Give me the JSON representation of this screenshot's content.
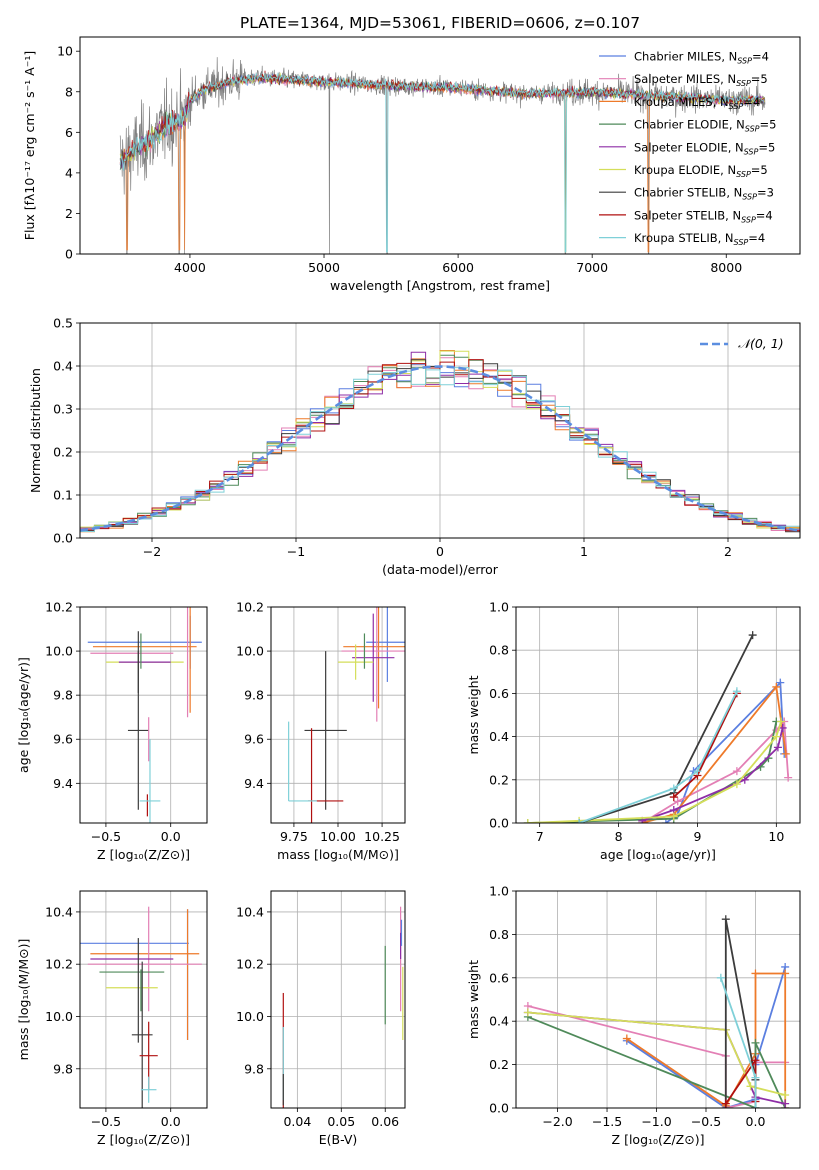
{
  "figure_title": "PLATE=1364, MJD=53061, FIBERID=0606, z=0.107",
  "models": [
    {
      "name": "Chabrier MILES",
      "nssp": "4",
      "color": "#5b7fe0"
    },
    {
      "name": "Salpeter MILES",
      "nssp": "5",
      "color": "#e37fb5"
    },
    {
      "name": "Kroupa MILES",
      "nssp": "4",
      "color": "#ee7a2a"
    },
    {
      "name": "Chabrier ELODIE",
      "nssp": "5",
      "color": "#4f8a5a"
    },
    {
      "name": "Salpeter ELODIE",
      "nssp": "5",
      "color": "#8e2da6"
    },
    {
      "name": "Kroupa ELODIE",
      "nssp": "5",
      "color": "#d4de5a"
    },
    {
      "name": "Chabrier STELIB",
      "nssp": "3",
      "color": "#3c3c3c"
    },
    {
      "name": "Salpeter STELIB",
      "nssp": "4",
      "color": "#b01010"
    },
    {
      "name": "Kroupa STELIB",
      "nssp": "4",
      "color": "#7fd0d8"
    }
  ],
  "chart_data": [
    {
      "id": "spectrum",
      "type": "line",
      "xlabel": "wavelength [Angstrom, rest frame]",
      "ylabel": "Flux [fλ10⁻¹⁷ erg cm⁻² s⁻¹ A⁻¹]",
      "xlim": [
        3180,
        8550
      ],
      "ylim": [
        0,
        10.7
      ],
      "xticks": [
        4000,
        5000,
        6000,
        7000,
        8000
      ],
      "yticks": [
        0,
        2,
        4,
        6,
        8,
        10
      ],
      "data_range": [
        3480,
        8290
      ],
      "continuum": [
        [
          3480,
          4.6
        ],
        [
          3600,
          5.2
        ],
        [
          3700,
          5.6
        ],
        [
          3850,
          6.5
        ],
        [
          3950,
          6.6
        ],
        [
          4000,
          7.6
        ],
        [
          4100,
          8.1
        ],
        [
          4300,
          8.5
        ],
        [
          4500,
          8.7
        ],
        [
          5000,
          8.5
        ],
        [
          5500,
          8.3
        ],
        [
          6000,
          8.2
        ],
        [
          6500,
          7.9
        ],
        [
          7000,
          8.0
        ],
        [
          7500,
          7.8
        ],
        [
          8000,
          7.6
        ],
        [
          8290,
          7.6
        ]
      ],
      "dips": [
        [
          3530,
          0
        ],
        [
          3920,
          0
        ],
        [
          3960,
          0
        ],
        [
          5040,
          0
        ],
        [
          5470,
          0
        ],
        [
          6800,
          0
        ],
        [
          7420,
          0
        ]
      ],
      "grid": false
    },
    {
      "id": "residuals",
      "type": "histogram",
      "xlabel": "(data-model)/error",
      "ylabel": "Normed distribution",
      "xlim": [
        -2.5,
        2.5
      ],
      "ylim": [
        0,
        0.5
      ],
      "xticks": [
        -2,
        -1,
        0,
        1,
        2
      ],
      "yticks": [
        0,
        0.1,
        0.2,
        0.3,
        0.4,
        0.5
      ],
      "bin_width": 0.1,
      "gaussian_legend": "𝒩(0, 1)",
      "grid": true
    },
    {
      "id": "age_vs_Z",
      "type": "scatter",
      "xlabel": "Z [log₁₀(Z/Z⊙)]",
      "ylabel": "age  [log₁₀(age/yr)]",
      "xlim": [
        -0.7,
        0.28
      ],
      "ylim": [
        9.22,
        10.2
      ],
      "xticks": [
        -0.5,
        0.0
      ],
      "yticks": [
        9.4,
        9.6,
        9.8,
        10.0,
        10.2
      ],
      "grid": true,
      "points": [
        {
          "model": 0,
          "x": -0.2,
          "xerr": 0.44,
          "y": 10.04,
          "yerr": 0
        },
        {
          "model": 0,
          "x": 0.15,
          "xerr": 0,
          "y": 10.04,
          "yerr": 0.12
        },
        {
          "model": 2,
          "x": -0.2,
          "xerr": 0.4,
          "y": 10.02,
          "yerr": 0
        },
        {
          "model": 2,
          "x": 0.15,
          "xerr": 0,
          "y": 10.02,
          "yerr": 0.3
        },
        {
          "model": 1,
          "x": 0.13,
          "xerr": 0,
          "y": 10.0,
          "yerr": 0.3
        },
        {
          "model": 1,
          "x": -0.3,
          "xerr": 0.32,
          "y": 9.99,
          "yerr": 0
        },
        {
          "model": 5,
          "x": -0.2,
          "xerr": 0.3,
          "y": 9.95,
          "yerr": 0
        },
        {
          "model": 4,
          "x": -0.2,
          "xerr": 0.2,
          "y": 9.95,
          "yerr": 0
        },
        {
          "model": 3,
          "x": -0.23,
          "xerr": 0,
          "y": 10.0,
          "yerr": 0.08
        },
        {
          "model": 6,
          "x": -0.25,
          "xerr": 0,
          "y": 9.95,
          "yerr": 0.14
        },
        {
          "model": 6,
          "x": -0.25,
          "xerr": 0.08,
          "y": 9.64,
          "yerr": 0.36
        },
        {
          "model": 1,
          "x": -0.17,
          "xerr": 0,
          "y": 9.6,
          "yerr": 0.1
        },
        {
          "model": 7,
          "x": -0.18,
          "xerr": 0,
          "y": 9.3,
          "yerr": 0.05
        },
        {
          "model": 8,
          "x": -0.16,
          "xerr": 0.08,
          "y": 9.32,
          "yerr": 0.28
        }
      ]
    },
    {
      "id": "age_vs_mass",
      "type": "scatter",
      "xlabel": "mass [log₁₀(M/M⊙)]",
      "ylabel": "",
      "xlim": [
        9.62,
        10.38
      ],
      "ylim": [
        9.22,
        10.2
      ],
      "xticks": [
        9.75,
        10.0,
        10.25
      ],
      "xticklabels": [
        "9.75",
        "10.00",
        "10.25"
      ],
      "yticks": [
        9.4,
        9.6,
        9.8,
        10.0,
        10.2
      ],
      "grid": true,
      "points": [
        {
          "model": 0,
          "x": 10.28,
          "xerr": 0.12,
          "y": 10.04,
          "yerr": 0.18
        },
        {
          "model": 2,
          "x": 10.23,
          "xerr": 0.2,
          "y": 10.02,
          "yerr": 0.28
        },
        {
          "model": 1,
          "x": 10.22,
          "xerr": 0.2,
          "y": 10.0,
          "yerr": 0.32
        },
        {
          "model": 4,
          "x": 10.2,
          "xerr": 0.12,
          "y": 9.97,
          "yerr": 0.2
        },
        {
          "model": 5,
          "x": 10.1,
          "xerr": 0.1,
          "y": 9.95,
          "yerr": 0.08
        },
        {
          "model": 3,
          "x": 10.15,
          "xerr": 0,
          "y": 10.0,
          "yerr": 0.08
        },
        {
          "model": 6,
          "x": 9.93,
          "xerr": 0.12,
          "y": 9.64,
          "yerr": 0.36
        },
        {
          "model": 7,
          "x": 9.85,
          "xerr": 0,
          "y": 9.4,
          "yerr": 0.25
        },
        {
          "model": 7,
          "x": 9.93,
          "xerr": 0.1,
          "y": 9.32,
          "yerr": 0
        },
        {
          "model": 8,
          "x": 9.72,
          "xerr": 0,
          "y": 9.5,
          "yerr": 0.18
        },
        {
          "model": 8,
          "x": 9.8,
          "xerr": 0.08,
          "y": 9.32,
          "yerr": 0
        }
      ]
    },
    {
      "id": "weight_vs_age",
      "type": "line",
      "xlabel": "age  [log₁₀(age/yr)]",
      "ylabel": "mass weight",
      "xlim": [
        6.7,
        10.3
      ],
      "ylim": [
        0,
        1.0
      ],
      "xticks": [
        7,
        8,
        9,
        10
      ],
      "yticks": [
        0.0,
        0.2,
        0.4,
        0.6,
        0.8,
        1.0
      ],
      "grid": true,
      "series": [
        {
          "model": 0,
          "points": [
            [
              8.6,
              0.0
            ],
            [
              8.75,
              0.04
            ],
            [
              8.95,
              0.24
            ],
            [
              10.05,
              0.65
            ],
            [
              10.1,
              0.32
            ]
          ]
        },
        {
          "model": 1,
          "points": [
            [
              8.3,
              0.0
            ],
            [
              8.75,
              0.1
            ],
            [
              9.5,
              0.24
            ],
            [
              10.0,
              0.43
            ],
            [
              10.1,
              0.47
            ],
            [
              10.15,
              0.21
            ]
          ]
        },
        {
          "model": 2,
          "points": [
            [
              8.3,
              0.0
            ],
            [
              8.7,
              0.04
            ],
            [
              10.0,
              0.63
            ],
            [
              10.12,
              0.32
            ]
          ]
        },
        {
          "model": 3,
          "points": [
            [
              6.85,
              0.0
            ],
            [
              8.7,
              0.02
            ],
            [
              9.8,
              0.26
            ],
            [
              9.9,
              0.3
            ],
            [
              10.0,
              0.47
            ]
          ]
        },
        {
          "model": 4,
          "points": [
            [
              8.3,
              0.01
            ],
            [
              8.7,
              0.06
            ],
            [
              9.6,
              0.2
            ],
            [
              10.02,
              0.35
            ],
            [
              10.08,
              0.44
            ]
          ]
        },
        {
          "model": 5,
          "points": [
            [
              6.85,
              0.0
            ],
            [
              7.5,
              0.01
            ],
            [
              8.7,
              0.03
            ],
            [
              9.5,
              0.18
            ],
            [
              10.0,
              0.4
            ],
            [
              10.06,
              0.47
            ]
          ]
        },
        {
          "model": 6,
          "points": [
            [
              7.5,
              0.0
            ],
            [
              8.7,
              0.14
            ],
            [
              9.7,
              0.87
            ]
          ]
        },
        {
          "model": 7,
          "points": [
            [
              8.7,
              0.12
            ],
            [
              9.0,
              0.22
            ],
            [
              9.5,
              0.6
            ]
          ]
        },
        {
          "model": 8,
          "points": [
            [
              7.5,
              0.0
            ],
            [
              8.7,
              0.16
            ],
            [
              9.0,
              0.24
            ],
            [
              9.5,
              0.61
            ]
          ]
        }
      ]
    },
    {
      "id": "mass_vs_Z",
      "type": "scatter",
      "xlabel": "Z [log₁₀(Z/Z⊙)]",
      "ylabel": "mass [log₁₀(M/M⊙)]",
      "xlim": [
        -0.7,
        0.28
      ],
      "ylim": [
        9.65,
        10.48
      ],
      "xticks": [
        -0.5,
        0.0
      ],
      "yticks": [
        9.8,
        10.0,
        10.2,
        10.4
      ],
      "grid": true,
      "points": [
        {
          "model": 0,
          "x": -0.3,
          "xerr": 0.44,
          "y": 10.28,
          "yerr": 0
        },
        {
          "model": 0,
          "x": 0.13,
          "xerr": 0,
          "y": 10.16,
          "yerr": 0.25
        },
        {
          "model": 2,
          "x": -0.2,
          "xerr": 0.42,
          "y": 10.24,
          "yerr": 0
        },
        {
          "model": 2,
          "x": 0.13,
          "xerr": 0,
          "y": 10.16,
          "yerr": 0.25
        },
        {
          "model": 1,
          "x": -0.2,
          "xerr": 0.44,
          "y": 10.2,
          "yerr": 0
        },
        {
          "model": 1,
          "x": -0.17,
          "xerr": 0,
          "y": 10.22,
          "yerr": 0.2
        },
        {
          "model": 4,
          "x": -0.3,
          "xerr": 0.32,
          "y": 10.22,
          "yerr": 0
        },
        {
          "model": 3,
          "x": -0.3,
          "xerr": 0.25,
          "y": 10.17,
          "yerr": 0
        },
        {
          "model": 5,
          "x": -0.3,
          "xerr": 0.2,
          "y": 10.11,
          "yerr": 0
        },
        {
          "model": 3,
          "x": -0.23,
          "xerr": 0,
          "y": 10.1,
          "yerr": 0.08
        },
        {
          "model": 6,
          "x": -0.25,
          "xerr": 0,
          "y": 10.1,
          "yerr": 0.2
        },
        {
          "model": 6,
          "x": -0.22,
          "xerr": 0.08,
          "y": 9.93,
          "yerr": 0.28
        },
        {
          "model": 7,
          "x": -0.17,
          "xerr": 0.07,
          "y": 9.85,
          "yerr": 0.13
        },
        {
          "model": 8,
          "x": -0.17,
          "xerr": 0.06,
          "y": 9.72,
          "yerr": 0.05
        }
      ]
    },
    {
      "id": "mass_vs_EBV",
      "type": "scatter",
      "xlabel": "E(B-V)",
      "ylabel": "",
      "xlim": [
        0.034,
        0.0645
      ],
      "ylim": [
        9.65,
        10.48
      ],
      "xticks": [
        0.04,
        0.05,
        0.06
      ],
      "xticklabels": [
        "0.04",
        "0.05",
        "0.06"
      ],
      "yticks": [
        9.8,
        10.0,
        10.2,
        10.4
      ],
      "grid": true,
      "points": [
        {
          "model": 7,
          "x": 0.0368,
          "xerr": 0,
          "y": 9.85,
          "yerr": 0.24
        },
        {
          "model": 8,
          "x": 0.0368,
          "xerr": 0,
          "y": 9.82,
          "yerr": 0.14
        },
        {
          "model": 6,
          "x": 0.0368,
          "xerr": 0,
          "y": 9.72,
          "yerr": 0.06
        },
        {
          "model": 3,
          "x": 0.06,
          "xerr": 0,
          "y": 10.12,
          "yerr": 0.15
        },
        {
          "model": 1,
          "x": 0.0635,
          "xerr": 0,
          "y": 10.22,
          "yerr": 0.2
        },
        {
          "model": 4,
          "x": 0.0635,
          "xerr": 0,
          "y": 10.27,
          "yerr": 0.05
        },
        {
          "model": 5,
          "x": 0.064,
          "xerr": 0,
          "y": 10.05,
          "yerr": 0.14
        },
        {
          "model": 0,
          "x": 0.0637,
          "xerr": 0,
          "y": 10.32,
          "yerr": 0.05
        }
      ]
    },
    {
      "id": "weight_vs_Z",
      "type": "line",
      "xlabel": "Z [log₁₀(Z/Z⊙)]",
      "ylabel": "mass weight",
      "xlim": [
        -2.42,
        0.45
      ],
      "ylim": [
        0,
        1.0
      ],
      "xticks": [
        -2.0,
        -1.5,
        -1.0,
        -0.5,
        0.0
      ],
      "yticks": [
        0.0,
        0.2,
        0.4,
        0.6,
        0.8,
        1.0
      ],
      "grid": true,
      "series": [
        {
          "model": 0,
          "points": [
            [
              -1.3,
              0.31
            ],
            [
              -0.3,
              0.0
            ],
            [
              0.0,
              0.04
            ],
            [
              0.0,
              0.2
            ],
            [
              0.3,
              0.65
            ]
          ]
        },
        {
          "model": 1,
          "points": [
            [
              -2.3,
              0.47
            ],
            [
              -0.3,
              0.24
            ],
            [
              -0.3,
              0.0
            ],
            [
              0.0,
              0.03
            ],
            [
              0.0,
              0.21
            ],
            [
              0.3,
              0.21
            ]
          ]
        },
        {
          "model": 2,
          "points": [
            [
              -1.3,
              0.32
            ],
            [
              -0.3,
              0.01
            ],
            [
              0.0,
              0.25
            ],
            [
              0.0,
              0.62
            ],
            [
              0.3,
              0.62
            ],
            [
              0.3,
              0.0
            ]
          ]
        },
        {
          "model": 3,
          "points": [
            [
              -2.3,
              0.42
            ],
            [
              0.0,
              0.0
            ],
            [
              0.0,
              0.3
            ],
            [
              0.3,
              0.0
            ]
          ]
        },
        {
          "model": 4,
          "points": [
            [
              -2.3,
              0.44
            ],
            [
              -0.3,
              0.36
            ],
            [
              0.0,
              0.05
            ],
            [
              0.3,
              0.02
            ]
          ]
        },
        {
          "model": 5,
          "points": [
            [
              -2.3,
              0.44
            ],
            [
              -0.3,
              0.36
            ],
            [
              -0.05,
              0.1
            ],
            [
              0.3,
              0.06
            ]
          ]
        },
        {
          "model": 6,
          "points": [
            [
              -0.3,
              0.0
            ],
            [
              -0.3,
              0.87
            ],
            [
              0.0,
              0.13
            ],
            [
              0.0,
              0.0
            ]
          ]
        },
        {
          "model": 7,
          "points": [
            [
              -0.3,
              0.02
            ],
            [
              0.0,
              0.22
            ],
            [
              0.0,
              0.03
            ]
          ]
        },
        {
          "model": 8,
          "points": [
            [
              -0.35,
              0.6
            ],
            [
              0.0,
              0.14
            ],
            [
              0.0,
              0.0
            ]
          ]
        }
      ]
    }
  ]
}
